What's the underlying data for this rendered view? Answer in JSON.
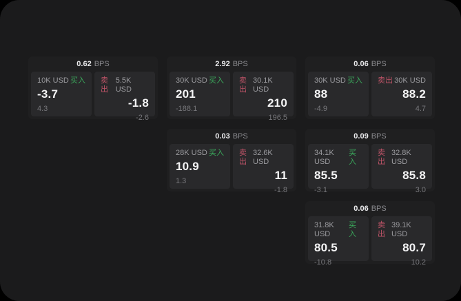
{
  "labels": {
    "bps_unit": "BPS",
    "buy": "买入",
    "sell": "卖出"
  },
  "colors": {
    "page_bg": "#1b1b1c",
    "card_bg": "#1f1f20",
    "panel_bg": "#29292b",
    "buy_green": "#3ba95c",
    "sell_red": "#c05468",
    "text_primary": "#f4f4f5",
    "text_muted": "#9b9b9f"
  },
  "cards": [
    {
      "bps": "0.62",
      "buy": {
        "amount": "10K USD",
        "price": "-3.7",
        "delta": "4.3"
      },
      "sell": {
        "amount": "5.5K USD",
        "price": "-1.8",
        "delta": "-2.6"
      }
    },
    {
      "bps": "2.92",
      "buy": {
        "amount": "30K USD",
        "price": "201",
        "delta": "-188.1"
      },
      "sell": {
        "amount": "30.1K USD",
        "price": "210",
        "delta": "196.5"
      }
    },
    {
      "bps": "0.06",
      "buy": {
        "amount": "30K USD",
        "price": "88",
        "delta": "-4.9"
      },
      "sell": {
        "amount": "30K USD",
        "price": "88.2",
        "delta": "4.7"
      }
    },
    {
      "bps": "0.03",
      "buy": {
        "amount": "28K USD",
        "price": "10.9",
        "delta": "1.3"
      },
      "sell": {
        "amount": "32.6K USD",
        "price": "11",
        "delta": "-1.8"
      }
    },
    {
      "bps": "0.09",
      "buy": {
        "amount": "34.1K USD",
        "price": "85.5",
        "delta": "-3.1"
      },
      "sell": {
        "amount": "32.8K USD",
        "price": "85.8",
        "delta": "3.0"
      }
    },
    {
      "bps": "0.06",
      "buy": {
        "amount": "31.8K USD",
        "price": "80.5",
        "delta": "-10.8"
      },
      "sell": {
        "amount": "39.1K USD",
        "price": "80.7",
        "delta": "10.2"
      }
    }
  ]
}
